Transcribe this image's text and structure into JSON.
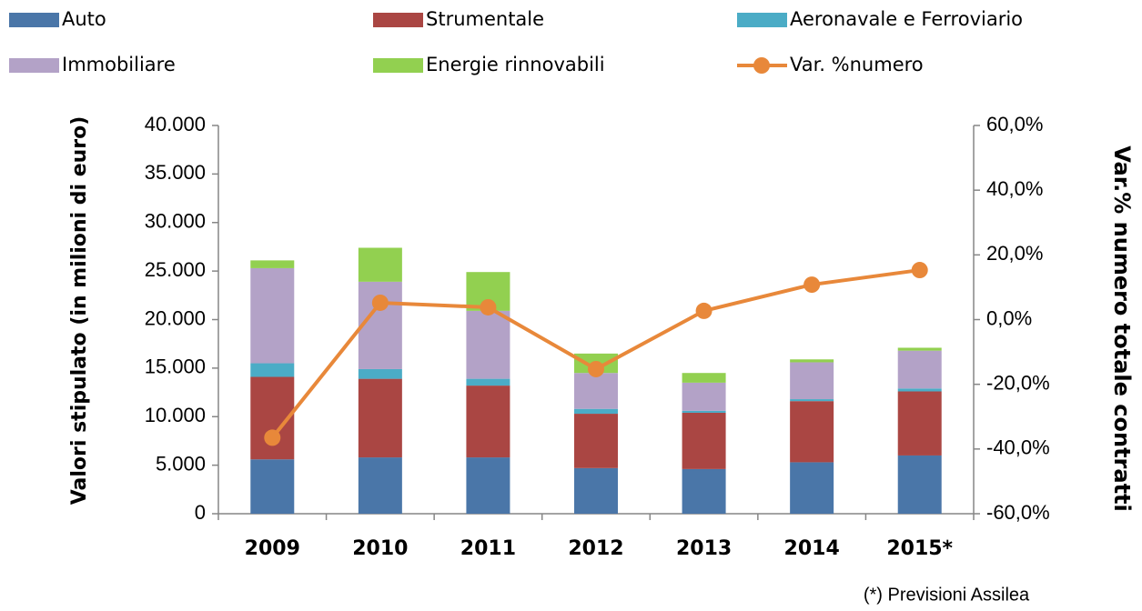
{
  "chart_data": {
    "type": "bar",
    "categories": [
      "2009",
      "2010",
      "2011",
      "2012",
      "2013",
      "2014",
      "2015*"
    ],
    "series": [
      {
        "name": "Auto",
        "color": "#4a76a8",
        "values": [
          5600,
          5800,
          5800,
          4700,
          4600,
          5300,
          6000
        ]
      },
      {
        "name": "Strumentale",
        "color": "#aa4643",
        "values": [
          8500,
          8100,
          7400,
          5600,
          5800,
          6300,
          6600
        ]
      },
      {
        "name": "Aeronavale e Ferroviario",
        "color": "#4bacc6",
        "values": [
          1400,
          1000,
          700,
          500,
          200,
          200,
          300
        ]
      },
      {
        "name": "Immobiliare",
        "color": "#b3a2c7",
        "values": [
          9800,
          9000,
          7000,
          3700,
          2900,
          3800,
          3900
        ]
      },
      {
        "name": "Energie rinnovabili",
        "color": "#92d050",
        "values": [
          800,
          3500,
          4000,
          2000,
          1000,
          300,
          300
        ]
      },
      {
        "name": "Var. %numero",
        "type": "line",
        "axis": "y2",
        "color": "#e8883a",
        "values": [
          -36.5,
          5.2,
          3.8,
          -15.3,
          2.7,
          10.8,
          15.3
        ]
      }
    ],
    "stacked": true,
    "y_label": "Valori stipulato (in milioni di euro)",
    "y2_label": "Var.% numero totale contratti",
    "ylim": [
      0,
      40000
    ],
    "yticks": [
      0,
      {
        "value": 5000,
        "label": "5.000"
      },
      {
        "value": 10000,
        "label": "10.000"
      },
      {
        "value": 15000,
        "label": "15.000"
      },
      {
        "value": 20000,
        "label": "20.000"
      },
      {
        "value": 25000,
        "label": "25.000"
      },
      {
        "value": 30000,
        "label": "30.000"
      },
      {
        "value": 35000,
        "label": "35.000"
      },
      {
        "value": 40000,
        "label": "40.000"
      }
    ],
    "y2lim": [
      -60,
      60
    ],
    "y2ticks": [
      {
        "value": -60,
        "label": "-60,0%"
      },
      {
        "value": -40,
        "label": "-40,0%"
      },
      {
        "value": -20,
        "label": "-20,0%"
      },
      {
        "value": 0,
        "label": "0,0%"
      },
      {
        "value": 20,
        "label": "20,0%"
      },
      {
        "value": 40,
        "label": "40,0%"
      },
      {
        "value": 60,
        "label": "60,0%"
      }
    ],
    "note": "(*) Previsioni Assilea"
  }
}
